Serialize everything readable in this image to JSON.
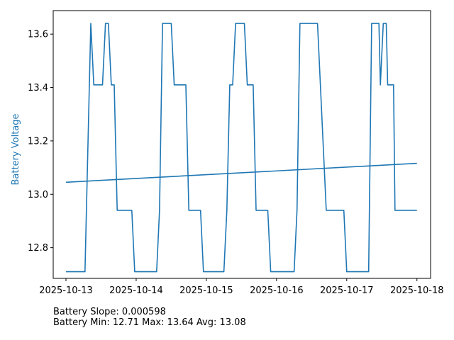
{
  "chart_data": {
    "type": "line",
    "ylabel": "Battery Voltage",
    "ylabel_color": "#1f77b4",
    "line_color": "#1f77b4",
    "xlabel": "",
    "title": "",
    "grid": false,
    "xlim": [
      "2025-10-12T19:38",
      "2025-10-18T04:40"
    ],
    "ylim": [
      12.685,
      13.688
    ],
    "x_ticks": [
      "2025-10-13",
      "2025-10-14",
      "2025-10-15",
      "2025-10-16",
      "2025-10-17",
      "2025-10-18"
    ],
    "y_ticks": [
      "12.8",
      "13.0",
      "13.2",
      "13.4",
      "13.6"
    ],
    "series": [
      {
        "values": [
          [
            "2025-10-13T00:00",
            12.71
          ],
          [
            "2025-10-13T06:30",
            12.71
          ],
          [
            "2025-10-13T08:30",
            13.64
          ],
          [
            "2025-10-13T09:30",
            13.41
          ],
          [
            "2025-10-13T12:30",
            13.41
          ],
          [
            "2025-10-13T13:30",
            13.64
          ],
          [
            "2025-10-13T14:30",
            13.64
          ],
          [
            "2025-10-13T15:30",
            13.41
          ],
          [
            "2025-10-13T16:30",
            13.41
          ],
          [
            "2025-10-13T17:30",
            12.94
          ],
          [
            "2025-10-13T22:30",
            12.94
          ],
          [
            "2025-10-13T23:30",
            12.71
          ],
          [
            "2025-10-14T07:00",
            12.71
          ],
          [
            "2025-10-14T08:00",
            12.94
          ],
          [
            "2025-10-14T09:00",
            13.64
          ],
          [
            "2025-10-14T12:00",
            13.64
          ],
          [
            "2025-10-14T13:00",
            13.41
          ],
          [
            "2025-10-14T17:00",
            13.41
          ],
          [
            "2025-10-14T18:00",
            12.94
          ],
          [
            "2025-10-14T22:00",
            12.94
          ],
          [
            "2025-10-14T23:00",
            12.71
          ],
          [
            "2025-10-15T06:00",
            12.71
          ],
          [
            "2025-10-15T07:00",
            12.94
          ],
          [
            "2025-10-15T08:00",
            13.41
          ],
          [
            "2025-10-15T09:00",
            13.41
          ],
          [
            "2025-10-15T10:00",
            13.64
          ],
          [
            "2025-10-15T13:00",
            13.64
          ],
          [
            "2025-10-15T14:00",
            13.41
          ],
          [
            "2025-10-15T16:00",
            13.41
          ],
          [
            "2025-10-15T17:00",
            12.94
          ],
          [
            "2025-10-15T21:00",
            12.94
          ],
          [
            "2025-10-15T22:00",
            12.71
          ],
          [
            "2025-10-16T06:00",
            12.71
          ],
          [
            "2025-10-16T07:00",
            12.94
          ],
          [
            "2025-10-16T08:00",
            13.64
          ],
          [
            "2025-10-16T14:00",
            13.64
          ],
          [
            "2025-10-16T17:00",
            12.94
          ],
          [
            "2025-10-16T23:00",
            12.94
          ],
          [
            "2025-10-17T00:00",
            12.71
          ],
          [
            "2025-10-17T07:30",
            12.71
          ],
          [
            "2025-10-17T08:30",
            13.64
          ],
          [
            "2025-10-17T11:00",
            13.64
          ],
          [
            "2025-10-17T11:30",
            13.41
          ],
          [
            "2025-10-17T12:30",
            13.64
          ],
          [
            "2025-10-17T13:30",
            13.64
          ],
          [
            "2025-10-17T14:00",
            13.41
          ],
          [
            "2025-10-17T16:00",
            13.41
          ],
          [
            "2025-10-17T16:30",
            12.94
          ],
          [
            "2025-10-17T23:59",
            12.94
          ]
        ]
      },
      {
        "values": [
          [
            "2025-10-13T00:00",
            13.045
          ],
          [
            "2025-10-17T23:59",
            13.116
          ]
        ]
      }
    ]
  },
  "stats": {
    "slope_text": "Battery Slope: 0.000598",
    "range_text": "Battery Min: 12.71 Max: 13.64 Avg: 13.08"
  }
}
